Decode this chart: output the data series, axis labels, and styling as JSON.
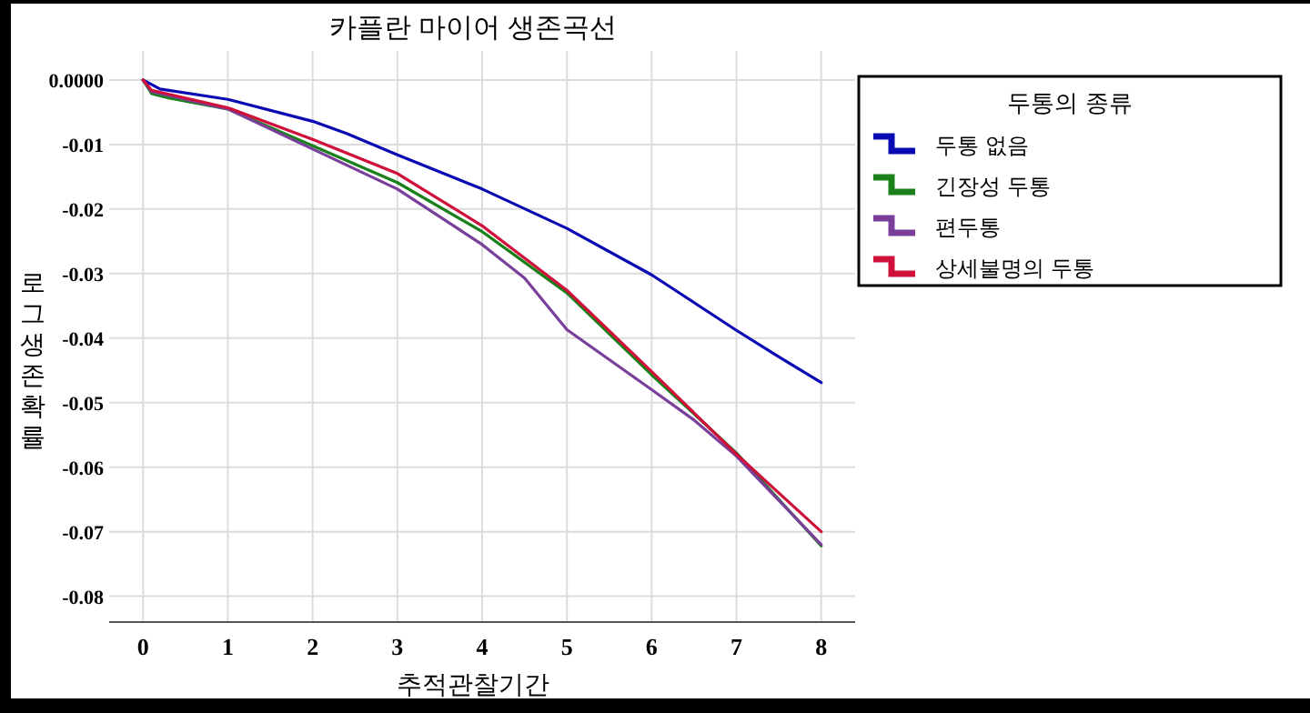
{
  "chart_data": {
    "type": "line",
    "title": "카플란 마이어 생존곡선",
    "xlabel": "추적관찰기간",
    "ylabel": "로그생존확률",
    "legend_title": "두통의 종류",
    "legend": "top right",
    "grid": true,
    "xlim": [
      -0.4,
      8.4
    ],
    "xticks": [
      0,
      1,
      2,
      3,
      4,
      5,
      6,
      7,
      8
    ],
    "ylim": [
      -0.084,
      0.0045
    ],
    "yticks": [
      {
        "value": 0,
        "label": "0.0000"
      },
      {
        "value": -0.01,
        "label": "-0.01"
      },
      {
        "value": -0.02,
        "label": "-0.02"
      },
      {
        "value": -0.03,
        "label": "-0.03"
      },
      {
        "value": -0.04,
        "label": "-0.04"
      },
      {
        "value": -0.05,
        "label": "-0.05"
      },
      {
        "value": -0.06,
        "label": "-0.06"
      },
      {
        "value": -0.07,
        "label": "-0.07"
      },
      {
        "value": -0.08,
        "label": "-0.08"
      }
    ],
    "x": [
      0,
      0.1,
      0.3,
      1,
      2,
      3,
      4,
      5,
      6,
      7,
      8
    ],
    "series": [
      {
        "name": "두통 없음",
        "color": "#0a0ab4",
        "x": [
          0,
          0.2,
          1,
          2,
          2.4,
          3,
          4,
          5,
          6,
          7,
          7.5,
          8
        ],
        "values": [
          0,
          -0.0014,
          -0.003,
          -0.0064,
          -0.0083,
          -0.0116,
          -0.0169,
          -0.023,
          -0.0302,
          -0.0388,
          -0.0429,
          -0.0469
        ]
      },
      {
        "name": "긴장성 두통",
        "color": "#1a801a",
        "values": [
          0,
          -0.0021,
          -0.0028,
          -0.0045,
          -0.0102,
          -0.0159,
          -0.0235,
          -0.033,
          -0.0457,
          -0.0578,
          -0.0722
        ]
      },
      {
        "name": "편두통",
        "color": "#7a3f9a",
        "x": [
          0,
          0.1,
          1,
          2,
          3,
          4,
          4.5,
          5,
          6,
          6.5,
          7,
          8
        ],
        "values": [
          0,
          -0.0018,
          -0.0045,
          -0.0107,
          -0.0169,
          -0.0255,
          -0.0307,
          -0.0387,
          -0.048,
          -0.0527,
          -0.0583,
          -0.072
        ]
      },
      {
        "name": "상세불명의 두통",
        "color": "#d0103a",
        "x": [
          0,
          0.1,
          1,
          2,
          3,
          4,
          5,
          6,
          7,
          8
        ],
        "values": [
          0,
          -0.0016,
          -0.0043,
          -0.0092,
          -0.0145,
          -0.0226,
          -0.0326,
          -0.0452,
          -0.058,
          -0.07
        ]
      }
    ]
  }
}
